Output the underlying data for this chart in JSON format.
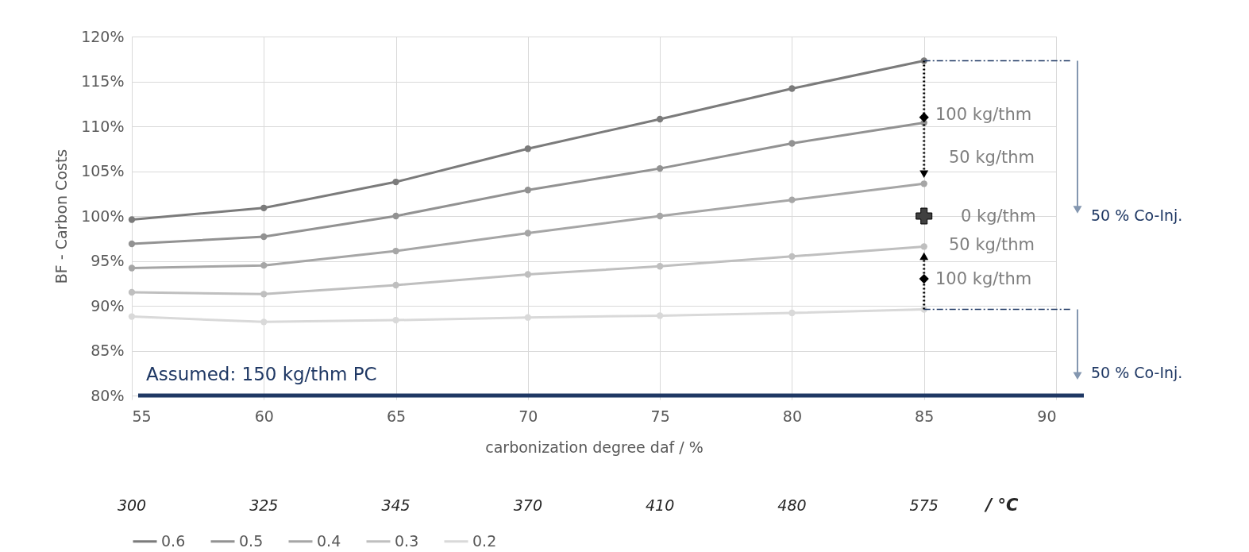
{
  "chart_data": {
    "type": "line",
    "xlabel": "carbonization degree daf / %",
    "ylabel": "BF - Carbon Costs",
    "x": [
      55,
      60,
      65,
      70,
      75,
      80,
      85
    ],
    "series": [
      {
        "name": "0.6",
        "color": "#7b7b7b",
        "values": [
          99.6,
          100.9,
          103.8,
          107.5,
          110.8,
          114.2,
          117.3
        ]
      },
      {
        "name": "0.5",
        "color": "#929292",
        "values": [
          96.9,
          97.7,
          100.0,
          102.9,
          105.3,
          108.1,
          110.4
        ]
      },
      {
        "name": "0.4",
        "color": "#a6a6a6",
        "values": [
          94.2,
          94.5,
          96.1,
          98.1,
          100.0,
          101.8,
          103.6
        ]
      },
      {
        "name": "0.3",
        "color": "#bfbfbf",
        "values": [
          91.5,
          91.3,
          92.3,
          93.5,
          94.4,
          95.5,
          96.6
        ]
      },
      {
        "name": "0.2",
        "color": "#d9d9d9",
        "values": [
          88.8,
          88.2,
          88.4,
          88.7,
          88.9,
          89.2,
          89.6
        ]
      },
      {
        "type": "scatter",
        "marker": "cross",
        "color": "#404040",
        "values": [
          null,
          null,
          null,
          null,
          null,
          null,
          100
        ]
      },
      {
        "type": "scatter",
        "marker": "diamond",
        "color": "#000000",
        "values": [
          null,
          null,
          null,
          null,
          null,
          null,
          111
        ]
      },
      {
        "type": "scatter",
        "marker": "diamond",
        "color": "#000000",
        "values": [
          null,
          null,
          null,
          null,
          null,
          null,
          93
        ]
      }
    ],
    "xlim": [
      55,
      90
    ],
    "xticks": [
      55,
      60,
      65,
      70,
      75,
      80,
      85,
      90
    ],
    "ylim": [
      80,
      120
    ],
    "yticks": [
      {
        "value": 80,
        "label": "80%"
      },
      {
        "value": 85,
        "label": "85%"
      },
      {
        "value": 90,
        "label": "90%"
      },
      {
        "value": 95,
        "label": "95%"
      },
      {
        "value": 100,
        "label": "100%"
      },
      {
        "value": 105,
        "label": "105%"
      },
      {
        "value": 110,
        "label": "110%"
      },
      {
        "value": 115,
        "label": "115%"
      },
      {
        "value": 120,
        "label": "120%"
      }
    ],
    "annotations": [
      "100 kg/thm",
      "50 kg/thm",
      "0 kg/thm",
      "50 kg/thm",
      "100 kg/thm",
      "50 % Co-Inj.",
      "50 % Co-Inj.",
      "Assumed: 150 kg/thm PC",
      "300",
      "325",
      "345",
      "370",
      "410",
      "480",
      "575",
      "/ °C"
    ],
    "ref_lines": [
      {
        "axis": "y",
        "value": 117.3,
        "color": "#1f3864",
        "line_style": "dashed"
      },
      {
        "axis": "y",
        "value": 89.6,
        "color": "#1f3864",
        "line_style": "dashed"
      }
    ],
    "grid": true,
    "legend": "bottom",
    "marker": "circle",
    "line_style": "solid"
  }
}
